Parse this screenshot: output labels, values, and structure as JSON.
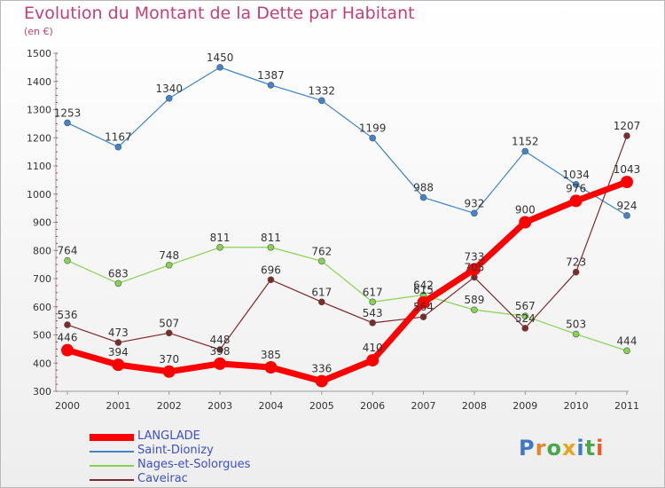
{
  "header": {
    "title": "Evolution du Montant de la Dette par Habitant",
    "unit": "(en €)"
  },
  "logo": {
    "text": "Proxiti",
    "letter_colors": [
      "#3f78c8",
      "#e8842b",
      "#4aa84a",
      "#e8a51c",
      "#3f78c8",
      "#4aa84a",
      "#e85b2b"
    ]
  },
  "chart_data": {
    "type": "line",
    "x": [
      "2000",
      "2001",
      "2002",
      "2003",
      "2004",
      "2005",
      "2006",
      "2007",
      "2008",
      "2009",
      "2010",
      "2011"
    ],
    "ylim": [
      300,
      1500
    ],
    "yticks": [
      300,
      400,
      500,
      600,
      700,
      800,
      900,
      1000,
      1100,
      1200,
      1300,
      1400,
      1500
    ],
    "grid": false,
    "legend": "bottom-left",
    "series": [
      {
        "name": "LANGLADE",
        "color": "#ff0000",
        "values": [
          446,
          394,
          370,
          398,
          385,
          336,
          410,
          615,
          733,
          900,
          976,
          1043
        ],
        "labels": [
          "446",
          "394",
          "370",
          "398",
          "385",
          "336",
          "410",
          "615",
          "733",
          "900",
          "976",
          "1043"
        ]
      },
      {
        "name": "Saint-Dionizy",
        "color": "#3f85c8",
        "values": [
          1253,
          1167,
          1340,
          1450,
          1387,
          1332,
          1199,
          988,
          932,
          1152,
          1034,
          924
        ],
        "labels": [
          "1253",
          "1167",
          "1340",
          "1450",
          "1387",
          "1332",
          "1199",
          "988",
          "932",
          "1152",
          "1034",
          "924"
        ]
      },
      {
        "name": "Nages-et-Solorgues",
        "color": "#86d352",
        "values": [
          764,
          683,
          748,
          811,
          811,
          762,
          617,
          642,
          589,
          567,
          503,
          444
        ],
        "labels": [
          "764",
          "683",
          "748",
          "811",
          "811",
          "762",
          "617",
          "642",
          "589",
          "567",
          "503",
          "444"
        ]
      },
      {
        "name": "Caveirac",
        "color": "#7d2a2a",
        "values": [
          536,
          473,
          507,
          448,
          696,
          617,
          543,
          564,
          705,
          524,
          723,
          1207
        ],
        "labels": [
          "536",
          "473",
          "507",
          "448",
          "696",
          "617",
          "543",
          "564",
          "705",
          "524",
          "723",
          "1207"
        ]
      }
    ]
  }
}
